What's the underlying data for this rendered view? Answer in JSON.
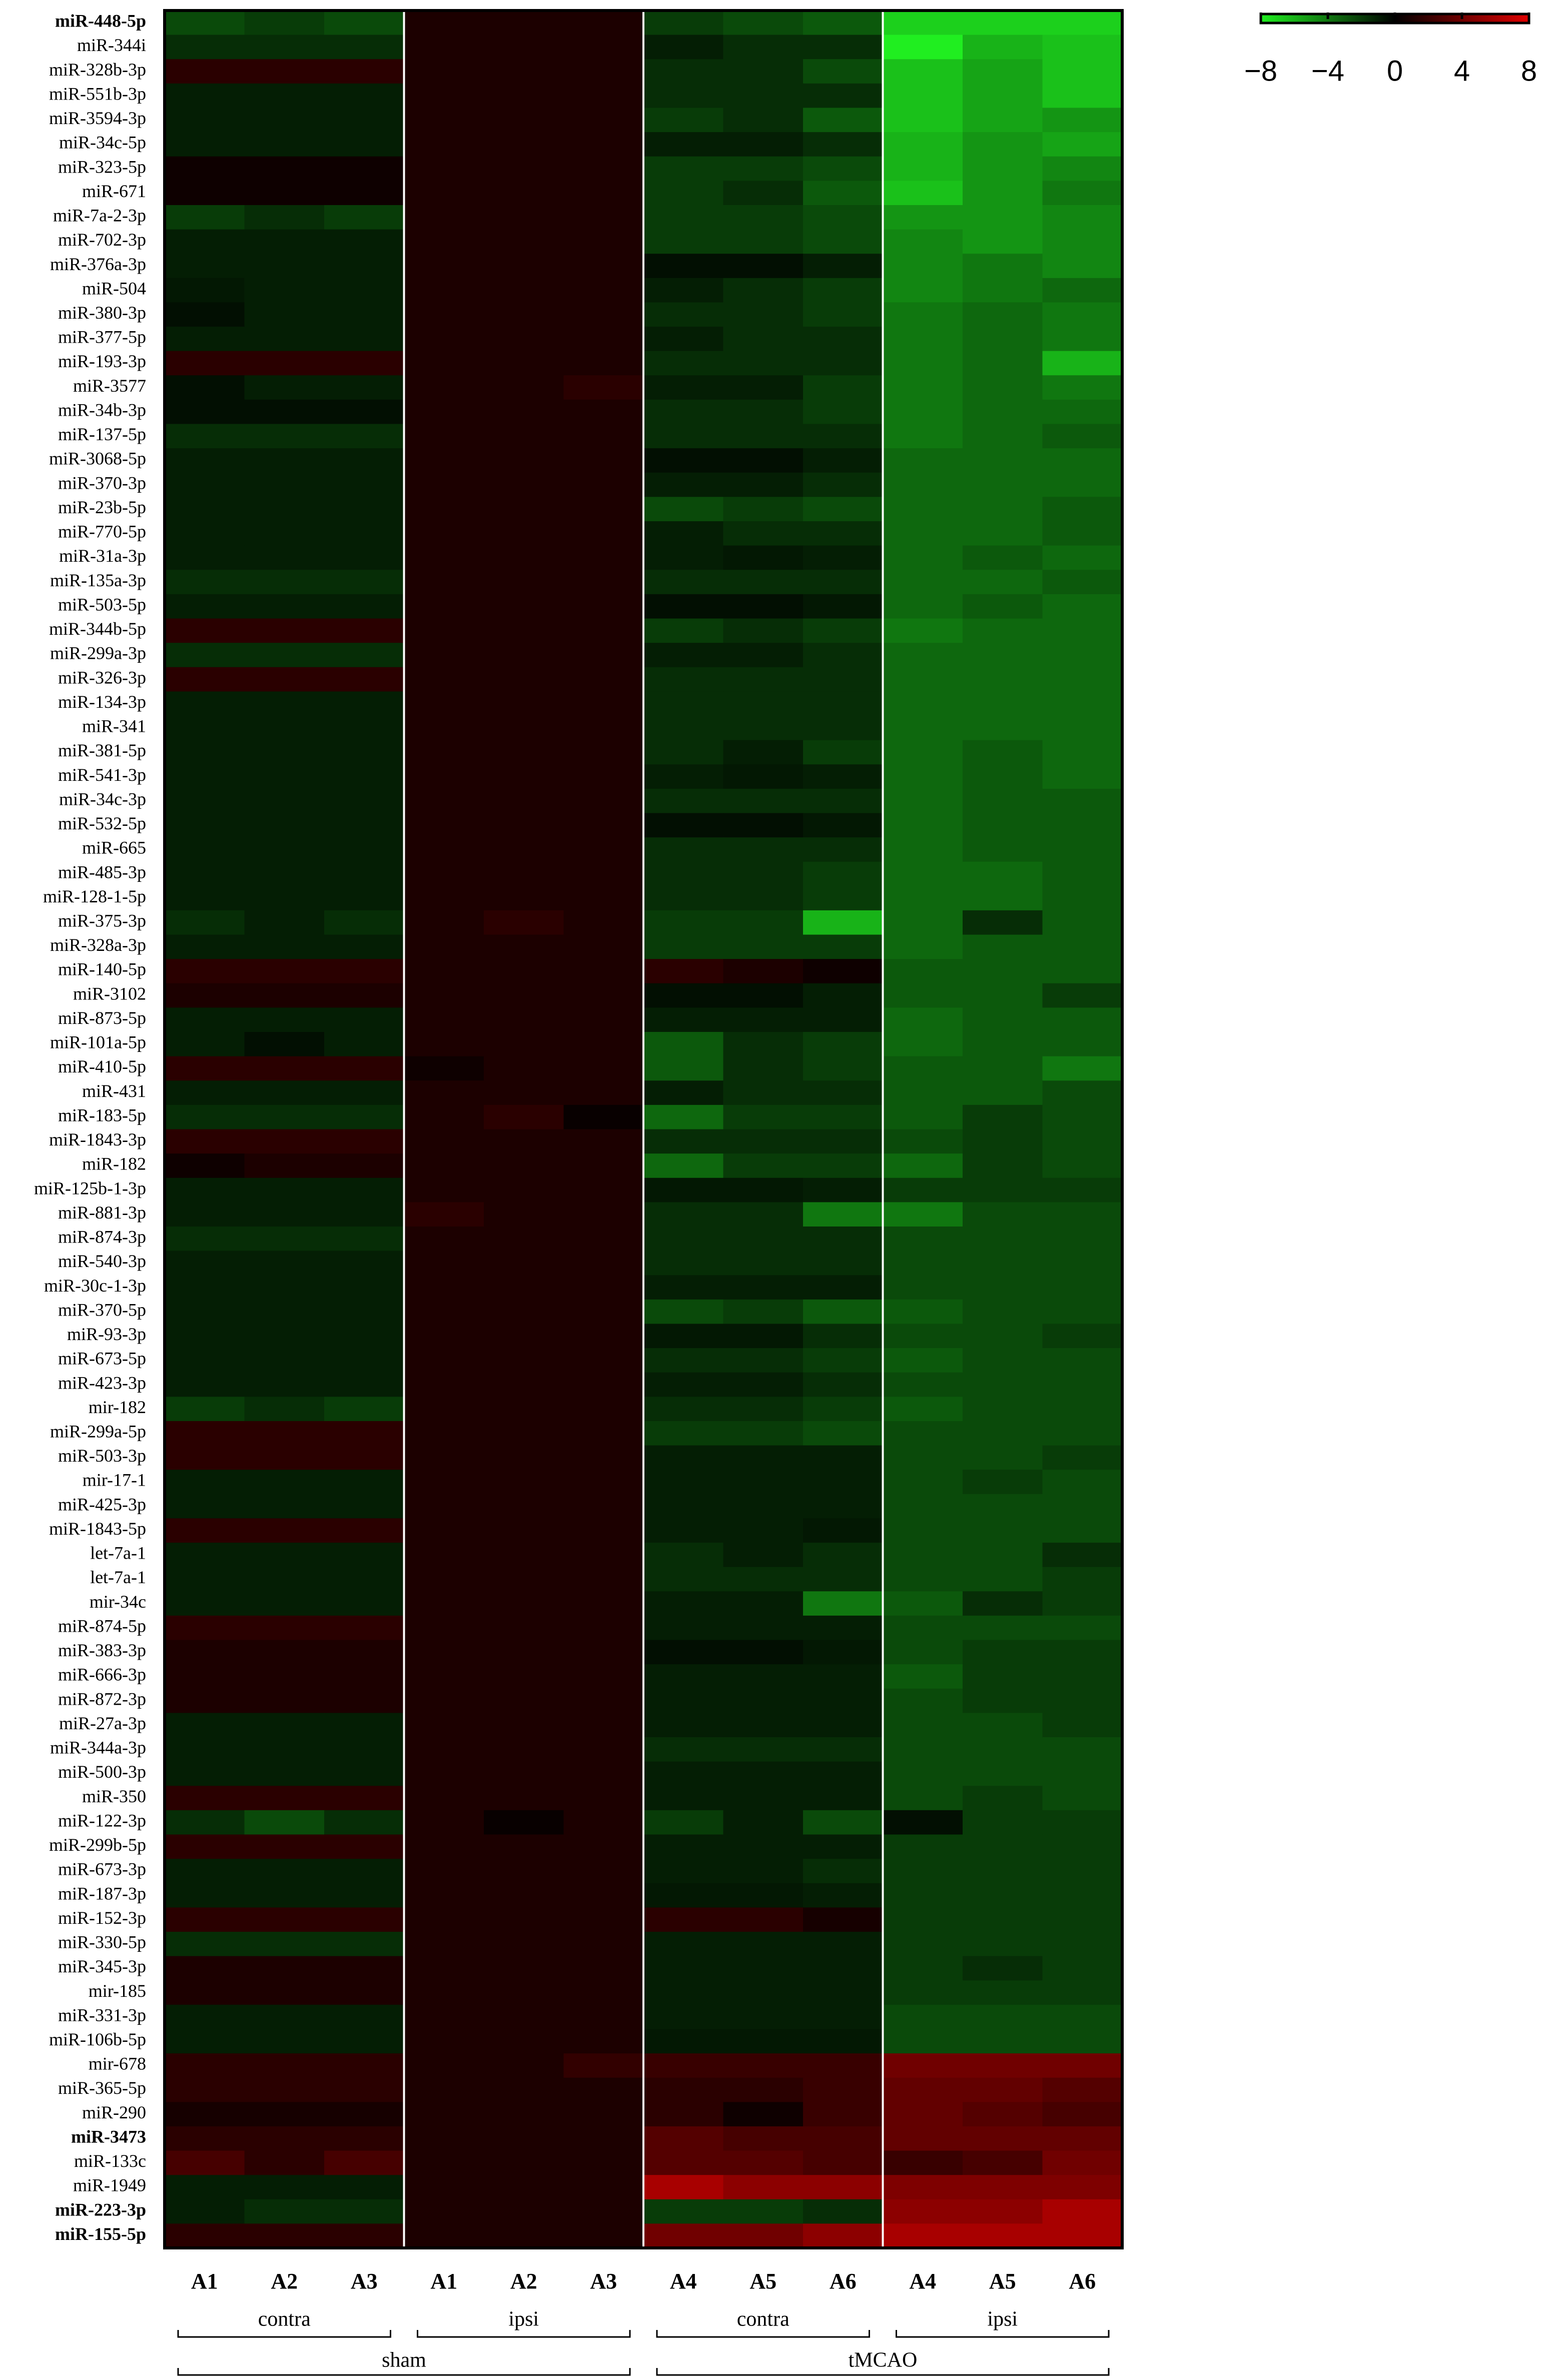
{
  "chart_data": {
    "type": "heatmap",
    "rows": [
      "miR-448-5p",
      "miR-344i",
      "miR-328b-3p",
      "miR-551b-3p",
      "miR-3594-3p",
      "miR-34c-5p",
      "miR-323-5p",
      "miR-671",
      "miR-7a-2-3p",
      "miR-702-3p",
      "miR-376a-3p",
      "miR-504",
      "miR-380-3p",
      "miR-377-5p",
      "miR-193-3p",
      "miR-3577",
      "miR-34b-3p",
      "miR-137-5p",
      "miR-3068-5p",
      "miR-370-3p",
      "miR-23b-5p",
      "miR-770-5p",
      "miR-31a-3p",
      "miR-135a-3p",
      "miR-503-5p",
      "miR-344b-5p",
      "miR-299a-3p",
      "miR-326-3p",
      "miR-134-3p",
      "miR-341",
      "miR-381-5p",
      "miR-541-3p",
      "miR-34c-3p",
      "miR-532-5p",
      "miR-665",
      "miR-485-3p",
      "miR-128-1-5p",
      "miR-375-3p",
      "miR-328a-3p",
      "miR-140-5p",
      "miR-3102",
      "miR-873-5p",
      "miR-101a-5p",
      "miR-410-5p",
      "miR-431",
      "miR-183-5p",
      "miR-1843-3p",
      "miR-182",
      "miR-125b-1-3p",
      "miR-881-3p",
      "miR-874-3p",
      "miR-540-3p",
      "miR-30c-1-3p",
      "miR-370-5p",
      "miR-93-3p",
      "miR-673-5p",
      "miR-423-3p",
      "mir-182",
      "miR-299a-5p",
      "miR-503-3p",
      "mir-17-1",
      "miR-425-3p",
      "miR-1843-5p",
      "let-7a-1",
      "let-7a-1",
      "mir-34c",
      "miR-874-5p",
      "miR-383-3p",
      "miR-666-3p",
      "miR-872-3p",
      "miR-27a-3p",
      "miR-344a-3p",
      "miR-500-3p",
      "miR-350",
      "miR-122-3p",
      "miR-299b-5p",
      "miR-673-3p",
      "miR-187-3p",
      "miR-152-3p",
      "miR-330-5p",
      "miR-345-3p",
      "mir-185",
      "miR-331-3p",
      "miR-106b-5p",
      "mir-678",
      "miR-365-5p",
      "miR-290",
      "miR-3473",
      "miR-133c",
      "miR-1949",
      "miR-223-3p",
      "miR-155-5p"
    ],
    "bold_rows": [
      0,
      87,
      90,
      91
    ],
    "columns": [
      "A1",
      "A2",
      "A3",
      "A1",
      "A2",
      "A3",
      "A4",
      "A5",
      "A6",
      "A4",
      "A5",
      "A6"
    ],
    "column_groups": [
      {
        "label": "contra",
        "span": [
          0,
          2
        ]
      },
      {
        "label": "ipsi",
        "span": [
          3,
          5
        ]
      },
      {
        "label": "contra",
        "span": [
          6,
          8
        ]
      },
      {
        "label": "ipsi",
        "span": [
          9,
          11
        ]
      }
    ],
    "parent_groups": [
      {
        "label": "sham",
        "span": [
          0,
          5
        ]
      },
      {
        "label": "tMCAO",
        "span": [
          6,
          11
        ]
      }
    ],
    "values": [
      [
        -2.5,
        -2,
        -2.5,
        1,
        1,
        1,
        -2,
        -2.5,
        -3,
        -7,
        -7,
        -7
      ],
      [
        -1.5,
        -1.5,
        -1.5,
        1,
        1,
        1,
        -1,
        -1.5,
        -1.5,
        -8,
        -6,
        -6.5
      ],
      [
        1.5,
        1.5,
        1.5,
        1,
        1,
        1,
        -1.5,
        -1.5,
        -2.5,
        -6.5,
        -5.5,
        -6.5
      ],
      [
        -1,
        -1,
        -1,
        1,
        1,
        1,
        -1.5,
        -1.5,
        -1.5,
        -6.5,
        -5.5,
        -6.5
      ],
      [
        -1,
        -1,
        -1,
        1,
        1,
        1,
        -2,
        -1.5,
        -3,
        -6.5,
        -5.5,
        -5
      ],
      [
        -1,
        -1,
        -1,
        1,
        1,
        1,
        -1,
        -1,
        -1.5,
        -6,
        -5,
        -5.5
      ],
      [
        0.5,
        0.5,
        0.5,
        1,
        1,
        1,
        -2,
        -2,
        -2.5,
        -6,
        -5,
        -4.5
      ],
      [
        0.5,
        0.5,
        0.5,
        1,
        1,
        1,
        -2,
        -1.5,
        -3,
        -6.5,
        -5,
        -4
      ],
      [
        -2,
        -1.5,
        -2,
        1,
        1,
        1,
        -2,
        -2,
        -2.5,
        -5,
        -5,
        -4.5
      ],
      [
        -1,
        -1,
        -1,
        1,
        1,
        1,
        -2,
        -2,
        -2.5,
        -4.5,
        -5,
        -4.5
      ],
      [
        -1,
        -1,
        -1,
        1,
        1,
        1,
        -0.5,
        -0.5,
        -1,
        -4.5,
        -4,
        -4.5
      ],
      [
        -0.8,
        -1,
        -1,
        1,
        1,
        1,
        -1,
        -1.5,
        -2,
        -4.5,
        -4,
        -3.5
      ],
      [
        -0.5,
        -1,
        -1,
        1,
        1,
        1,
        -1.5,
        -1.5,
        -2,
        -4,
        -3.5,
        -4
      ],
      [
        -1,
        -1,
        -1,
        1,
        1,
        1,
        -1,
        -1.5,
        -1.5,
        -4,
        -3.5,
        -4
      ],
      [
        1.5,
        1.5,
        1.5,
        1,
        1,
        1,
        -1.5,
        -1.5,
        -1.5,
        -4,
        -3.5,
        -6
      ],
      [
        -0.5,
        -1,
        -1,
        1,
        1,
        1.5,
        -1,
        -1,
        -2,
        -4,
        -3.5,
        -4
      ],
      [
        -0.5,
        -0.5,
        -0.5,
        1,
        1,
        1,
        -1.5,
        -1.5,
        -2,
        -4,
        -3.5,
        -3.5
      ],
      [
        -1.5,
        -1.5,
        -1.5,
        1,
        1,
        1,
        -1.5,
        -1.5,
        -1.5,
        -4,
        -3.5,
        -3
      ],
      [
        -1,
        -1,
        -1,
        1,
        1,
        1,
        -0.5,
        -0.5,
        -1,
        -3.5,
        -3.5,
        -3.5
      ],
      [
        -1,
        -1,
        -1,
        1,
        1,
        1,
        -1,
        -1,
        -1.5,
        -3.5,
        -3.5,
        -3.5
      ],
      [
        -1,
        -1,
        -1,
        1,
        1,
        1,
        -2.5,
        -2,
        -2.5,
        -3.5,
        -3.5,
        -3
      ],
      [
        -1,
        -1,
        -1,
        1,
        1,
        1,
        -1,
        -1.5,
        -1.5,
        -3.5,
        -3.5,
        -3
      ],
      [
        -1,
        -1,
        -1,
        1,
        1,
        1,
        -1,
        -0.8,
        -1,
        -3.5,
        -3,
        -3.5
      ],
      [
        -1.5,
        -1.5,
        -1.5,
        1,
        1,
        1,
        -1.5,
        -1.5,
        -1.5,
        -3.5,
        -3.5,
        -3
      ],
      [
        -1,
        -1,
        -1,
        1,
        1,
        1,
        -0.5,
        -0.5,
        -0.8,
        -3.5,
        -3,
        -3.5
      ],
      [
        1.5,
        1.5,
        1.5,
        1,
        1,
        1,
        -2,
        -1.5,
        -2,
        -4,
        -3.5,
        -3.5
      ],
      [
        -1.5,
        -1.5,
        -1.5,
        1,
        1,
        1,
        -1,
        -1,
        -1.5,
        -3.5,
        -3.5,
        -3.5
      ],
      [
        1.5,
        1.5,
        1.5,
        1,
        1,
        1,
        -1.5,
        -1.5,
        -1.5,
        -3.5,
        -3.5,
        -3.5
      ],
      [
        -1,
        -1,
        -1,
        1,
        1,
        1,
        -1.5,
        -1.5,
        -1.5,
        -3.5,
        -3.5,
        -3.5
      ],
      [
        -1,
        -1,
        -1,
        1,
        1,
        1,
        -1.5,
        -1.5,
        -1.5,
        -3.5,
        -3.5,
        -3.5
      ],
      [
        -1,
        -1,
        -1,
        1,
        1,
        1,
        -1.5,
        -1,
        -2,
        -3.5,
        -3,
        -3.5
      ],
      [
        -1,
        -1,
        -1,
        1,
        1,
        1,
        -1,
        -0.8,
        -1,
        -3.5,
        -3,
        -3.5
      ],
      [
        -1,
        -1,
        -1,
        1,
        1,
        1,
        -1.5,
        -1.5,
        -1.5,
        -3.5,
        -3,
        -3
      ],
      [
        -1,
        -1,
        -1,
        1,
        1,
        1,
        -0.5,
        -0.5,
        -0.8,
        -3.5,
        -3,
        -3
      ],
      [
        -1,
        -1,
        -1,
        1,
        1,
        1,
        -1.5,
        -1.5,
        -1.5,
        -3.5,
        -3,
        -3
      ],
      [
        -1,
        -1,
        -1,
        1,
        1,
        1,
        -1.5,
        -1.5,
        -2,
        -3.5,
        -3.5,
        -3
      ],
      [
        -1,
        -1,
        -1,
        1,
        1,
        1,
        -1.5,
        -1.5,
        -2,
        -3.5,
        -3.5,
        -3
      ],
      [
        -1.5,
        -1,
        -1.5,
        1,
        1.5,
        1,
        -2,
        -2,
        -6,
        -3.5,
        -1.5,
        -3
      ],
      [
        -1,
        -1,
        -1,
        1,
        1,
        1,
        -2,
        -2,
        -2,
        -3.5,
        -3,
        -3
      ],
      [
        1.5,
        1.5,
        1.5,
        1,
        1,
        1,
        1.5,
        1,
        0.5,
        -3,
        -3,
        -3
      ],
      [
        1,
        1,
        1,
        1,
        1,
        1,
        -0.5,
        -0.5,
        -1,
        -3,
        -3,
        -2
      ],
      [
        -1,
        -1,
        -1,
        1,
        1,
        1,
        -1,
        -1,
        -1,
        -3.5,
        -3,
        -3
      ],
      [
        -1,
        -0.5,
        -1,
        1,
        1,
        1,
        -3,
        -1.5,
        -2,
        -3.5,
        -3,
        -3
      ],
      [
        1.5,
        1.5,
        1.5,
        0.5,
        1,
        1,
        -3,
        -1.5,
        -2,
        -3,
        -3,
        -4
      ],
      [
        -1,
        -1,
        -1,
        1,
        1,
        1,
        -1,
        -1.5,
        -1.5,
        -3,
        -3,
        -2.5
      ],
      [
        -1.5,
        -1.5,
        -1.5,
        1,
        1.5,
        0.3,
        -3.5,
        -2,
        -2,
        -3,
        -2,
        -2.5
      ],
      [
        1.5,
        1.5,
        1.5,
        1,
        1,
        1,
        -1.5,
        -1.5,
        -1.5,
        -2.5,
        -2,
        -2.5
      ],
      [
        0.5,
        1,
        1,
        1,
        1,
        1,
        -3.5,
        -2,
        -2,
        -3.5,
        -2,
        -2.5
      ],
      [
        -1,
        -1,
        -1,
        1,
        1,
        1,
        -0.8,
        -0.8,
        -1,
        -2,
        -2,
        -2
      ],
      [
        -1,
        -1,
        -1,
        1.5,
        1,
        1,
        -1.5,
        -1.5,
        -4,
        -4,
        -2.5,
        -2.5
      ],
      [
        -1.5,
        -1.5,
        -1.5,
        1,
        1,
        1,
        -1.5,
        -1.5,
        -1.5,
        -2.5,
        -2.5,
        -2.5
      ],
      [
        -1,
        -1,
        -1,
        1,
        1,
        1,
        -1.5,
        -1.5,
        -1.5,
        -2.5,
        -2.5,
        -2.5
      ],
      [
        -1,
        -1,
        -1,
        1,
        1,
        1,
        -1,
        -1,
        -1,
        -2.5,
        -2.5,
        -2.5
      ],
      [
        -1,
        -1,
        -1,
        1,
        1,
        1,
        -2.5,
        -2,
        -3,
        -3,
        -2.5,
        -2.5
      ],
      [
        -1,
        -1,
        -1,
        1,
        1,
        1,
        -0.8,
        -0.8,
        -1.5,
        -2.5,
        -2.5,
        -2
      ],
      [
        -1,
        -1,
        -1,
        1,
        1,
        1,
        -1.5,
        -1.5,
        -2,
        -3,
        -2.5,
        -2.5
      ],
      [
        -1,
        -1,
        -1,
        1,
        1,
        1,
        -1,
        -1,
        -1.5,
        -2.5,
        -2.5,
        -2.5
      ],
      [
        -2,
        -1.5,
        -2,
        1,
        1,
        1,
        -1.5,
        -1.5,
        -2,
        -3,
        -2.5,
        -2.5
      ],
      [
        1.5,
        1.5,
        1.5,
        1,
        1,
        1,
        -2,
        -2,
        -2.5,
        -2.5,
        -2.5,
        -2.5
      ],
      [
        1.5,
        1.5,
        1.5,
        1,
        1,
        1,
        -1,
        -1,
        -1,
        -2.5,
        -2.5,
        -2
      ],
      [
        -1,
        -1,
        -1,
        1,
        1,
        1,
        -1,
        -1,
        -1,
        -2.5,
        -2,
        -2.5
      ],
      [
        -1,
        -1,
        -1,
        1,
        1,
        1,
        -1,
        -1,
        -1,
        -2.5,
        -2.5,
        -2.5
      ],
      [
        1.5,
        1.5,
        1.5,
        1,
        1,
        1,
        -1,
        -1,
        -0.8,
        -2.5,
        -2.5,
        -2.5
      ],
      [
        -1,
        -1,
        -1,
        1,
        1,
        1,
        -1.5,
        -1,
        -1.5,
        -2.5,
        -2.5,
        -1.5
      ],
      [
        -1,
        -1,
        -1,
        1,
        1,
        1,
        -1.5,
        -1.5,
        -1.5,
        -2.5,
        -2.5,
        -2
      ],
      [
        -1,
        -1,
        -1,
        1,
        1,
        1,
        -1,
        -1,
        -4,
        -3,
        -1.5,
        -2
      ],
      [
        1.5,
        1.5,
        1.5,
        1,
        1,
        1,
        -1,
        -1,
        -1,
        -2.5,
        -2.5,
        -2.5
      ],
      [
        1,
        1,
        1,
        1,
        1,
        1,
        -0.5,
        -0.5,
        -0.8,
        -2.5,
        -2,
        -2
      ],
      [
        1,
        1,
        1,
        1,
        1,
        1,
        -1,
        -1,
        -1,
        -3,
        -2,
        -2
      ],
      [
        1,
        1,
        1,
        1,
        1,
        1,
        -1,
        -1,
        -1,
        -2.5,
        -2,
        -2
      ],
      [
        -1,
        -1,
        -1,
        1,
        1,
        1,
        -1,
        -1,
        -1,
        -2.5,
        -2.5,
        -2
      ],
      [
        -1,
        -1,
        -1,
        1,
        1,
        1,
        -1.5,
        -1.5,
        -1.5,
        -2.5,
        -2.5,
        -2.5
      ],
      [
        -1,
        -1,
        -1,
        1,
        1,
        1,
        -1,
        -1,
        -1,
        -2.5,
        -2.5,
        -2.5
      ],
      [
        1.5,
        1.5,
        1.5,
        1,
        1,
        1,
        -1,
        -1,
        -1,
        -2.5,
        -2,
        -2.5
      ],
      [
        -1.5,
        -2.5,
        -1.5,
        1,
        0.3,
        1,
        -2,
        -1,
        -2.5,
        -0.5,
        -2,
        -2
      ],
      [
        1.5,
        1.5,
        1.5,
        1,
        1,
        1,
        -1,
        -1,
        -1,
        -2,
        -2,
        -2
      ],
      [
        -1,
        -1,
        -1,
        1,
        1,
        1,
        -1,
        -1,
        -1.5,
        -2,
        -2,
        -2
      ],
      [
        -1,
        -1,
        -1,
        1,
        1,
        1,
        -0.8,
        -0.8,
        -1,
        -2,
        -2,
        -2
      ],
      [
        1.5,
        1.5,
        1.5,
        1,
        1,
        1,
        1.5,
        1.5,
        0.8,
        -2,
        -2,
        -2
      ],
      [
        -1.5,
        -1.5,
        -1.5,
        1,
        1,
        1,
        -1,
        -1,
        -1,
        -2,
        -2,
        -2
      ],
      [
        1,
        1,
        1,
        1,
        1,
        1,
        -1,
        -1,
        -1,
        -2,
        -1.5,
        -2
      ],
      [
        1,
        1,
        1,
        1,
        1,
        1,
        -1,
        -1,
        -1,
        -2,
        -2,
        -2
      ],
      [
        -1,
        -1,
        -1,
        1,
        1,
        1,
        -1,
        -1,
        -1,
        -2.5,
        -2.5,
        -2.5
      ],
      [
        -1,
        -1,
        -1,
        1,
        1,
        1,
        -0.8,
        -0.8,
        -0.8,
        -2.5,
        -2.5,
        -2.5
      ],
      [
        1.5,
        1.5,
        1.5,
        1,
        1,
        1.8,
        2,
        2,
        2,
        4,
        4,
        4
      ],
      [
        1.5,
        1.5,
        1.5,
        1,
        1,
        1,
        1.5,
        1.5,
        2,
        3.5,
        3.5,
        3
      ],
      [
        0.8,
        0.8,
        0.8,
        1,
        1,
        1,
        1.5,
        0.5,
        2,
        3.5,
        3,
        2.5
      ],
      [
        1.5,
        1.5,
        1.5,
        1,
        1,
        1,
        3,
        2.5,
        2.5,
        3.5,
        3.5,
        3.5
      ],
      [
        2.5,
        1.5,
        2.5,
        1,
        1,
        1,
        3,
        3,
        2.5,
        2,
        2.5,
        4
      ],
      [
        -1,
        -1,
        -1,
        1,
        1,
        1,
        6,
        5,
        5,
        4.5,
        4.5,
        4.5
      ],
      [
        -1,
        -1.5,
        -1.5,
        1,
        1,
        1,
        -2,
        -2,
        -1.5,
        5,
        5,
        6
      ],
      [
        1.5,
        1.5,
        1.5,
        1,
        1,
        1,
        4,
        4,
        5,
        6,
        6,
        6
      ]
    ],
    "clim": [
      -8,
      8
    ],
    "cticks": [
      {
        "value": -8,
        "label": "−8"
      },
      {
        "value": -4,
        "label": "−4"
      },
      0,
      4,
      8
    ],
    "colors": {
      "low": "#20ee20",
      "mid": "#000000",
      "high": "#e00000"
    }
  }
}
